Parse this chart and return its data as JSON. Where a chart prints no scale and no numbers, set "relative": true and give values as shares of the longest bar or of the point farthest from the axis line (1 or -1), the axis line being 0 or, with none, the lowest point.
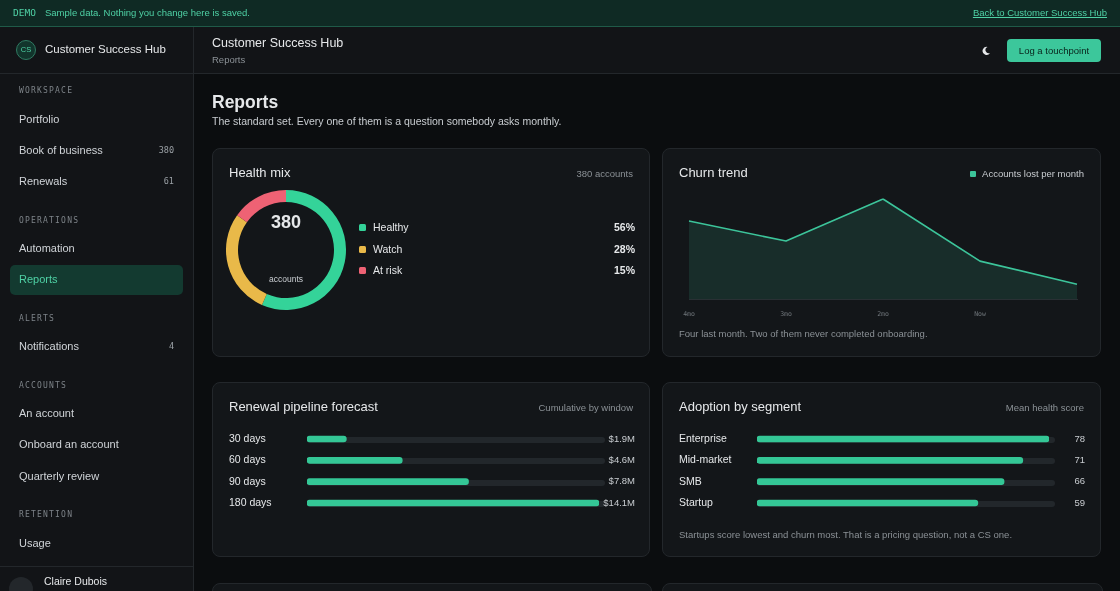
{
  "chart_data": [
    {
      "type": "other",
      "title": "Reports",
      "subtitle": "The standard set. Every one of them is a question somebody asks monthly.",
      "annotations": [
        "DEMO",
        "Sample data. Nothing you change here is saved.",
        "Back to Customer Success Hub",
        "CS",
        "Customer Success Hub",
        "Customer Success Hub",
        "Reports",
        "Log a touchpoint",
        "WORKSPACE",
        "Portfolio",
        "Book of business",
        "380",
        "Renewals",
        "61",
        "OPERATIONS",
        "Automation",
        "Reports",
        "ALERTS",
        "Notifications",
        "4",
        "ACCOUNTS",
        "An account",
        "Onboard an account",
        "Quarterly review",
        "RETENTION",
        "Usage",
        "Claire Dubois"
      ]
    },
    {
      "type": "donut",
      "title": "Health mix",
      "subtitle": "380 accounts",
      "categories": [
        "Healthy",
        "Watch",
        "At risk"
      ],
      "values": [
        56,
        28,
        15
      ],
      "colors": [
        "#34d399",
        "#e9b949",
        "#ee6274"
      ],
      "value_labels": [
        "56%",
        "28%",
        "15%"
      ],
      "legend": "right",
      "annotations": [
        "380",
        "accounts"
      ]
    },
    {
      "type": "area",
      "title": "Churn trend",
      "categories": [
        "4mo",
        "3mo",
        "2mo",
        "Now",
        null
      ],
      "relative": true,
      "legend": "top right",
      "annotations": [
        "Four last month. Two of them never completed onboarding."
      ],
      "series": [
        {
          "name": "Accounts lost per month",
          "color": "#3cc49a",
          "values": [
            0.78,
            0.58,
            1,
            0.38,
            0.15
          ]
        }
      ]
    },
    {
      "type": "bar",
      "orientation": "horizontal",
      "title": "Renewal pipeline forecast",
      "subtitle": "Cumulative by window",
      "categories": [
        "30 days",
        "60 days",
        "90 days",
        "180 days"
      ],
      "values": [
        1.9,
        4.6,
        7.8,
        14.1
      ],
      "value_labels": [
        "$1.9M",
        "$4.6M",
        "$7.8M",
        "$14.1M"
      ],
      "color": "#34c796"
    },
    {
      "type": "bar",
      "orientation": "horizontal",
      "title": "Adoption by segment",
      "subtitle": "Mean health score",
      "categories": [
        "Enterprise",
        "Mid-market",
        "SMB",
        "Startup"
      ],
      "values": [
        78,
        71,
        66,
        59
      ],
      "data_labels": true,
      "color": "#34c796",
      "annotations": [
        "Startups score lowest and churn most. That is a pricing question, not a CS one."
      ]
    }
  ]
}
